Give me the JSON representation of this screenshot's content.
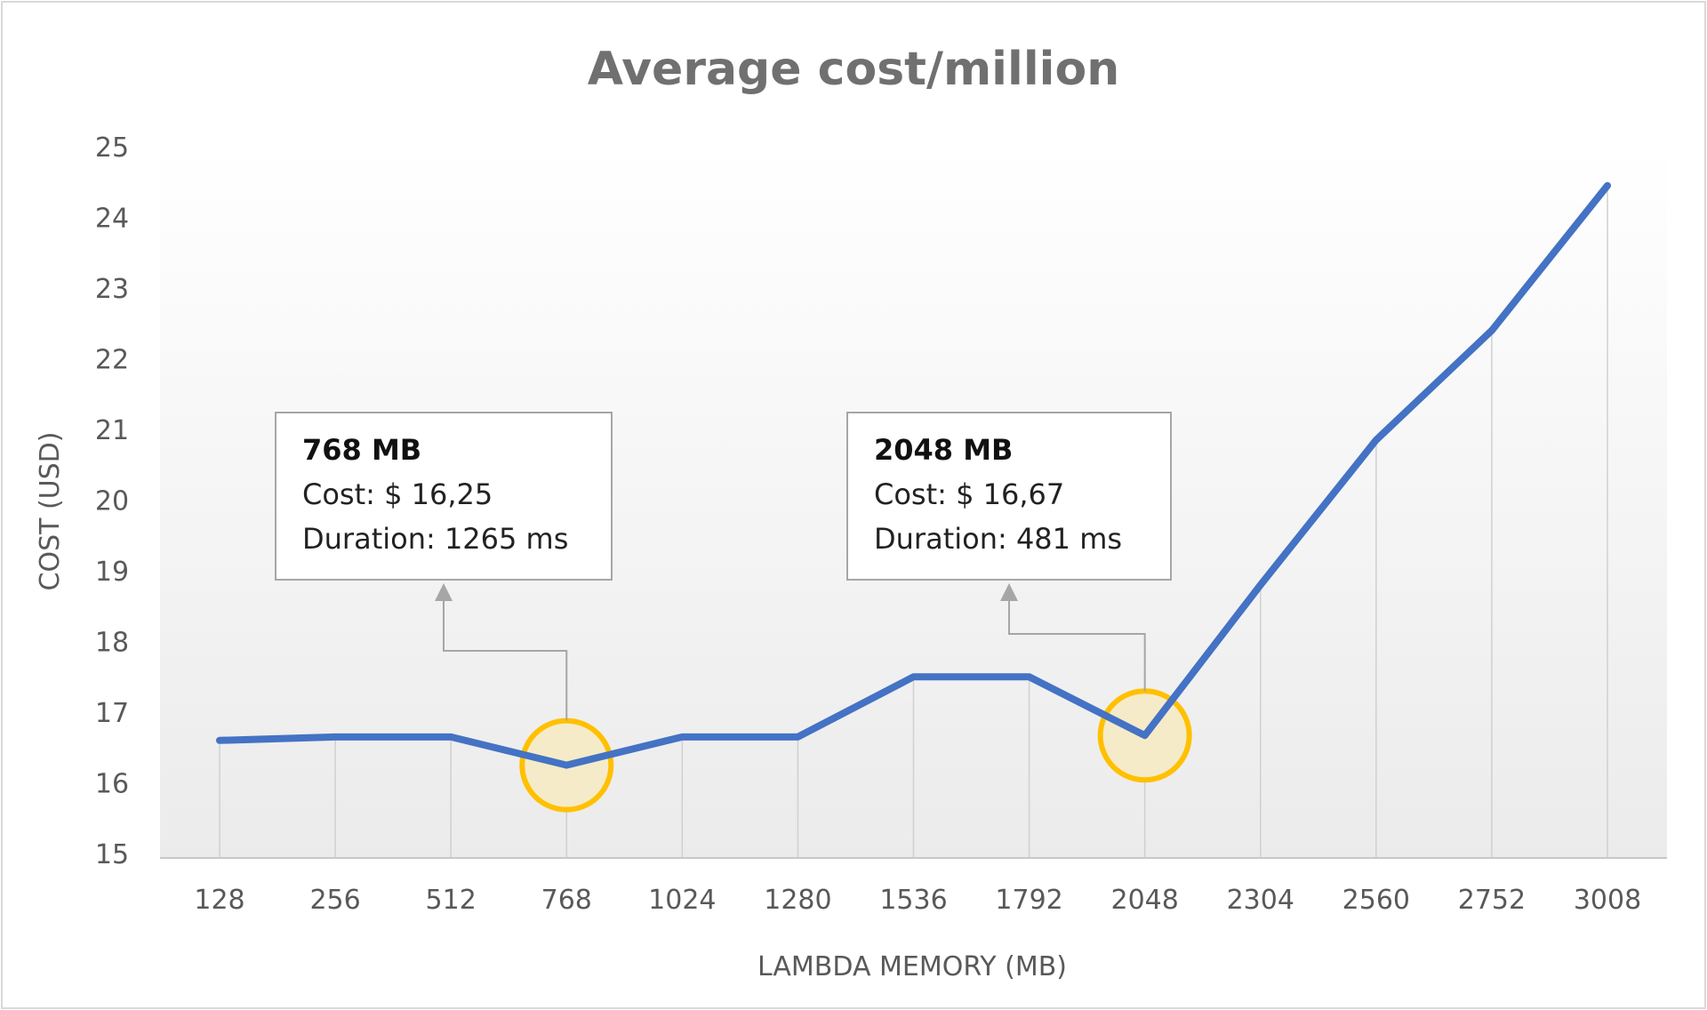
{
  "chart_data": {
    "type": "line",
    "title": "Average cost/million",
    "xlabel": "LAMBDA MEMORY (MB)",
    "ylabel": "COST (USD)",
    "categories": [
      "128",
      "256",
      "512",
      "768",
      "1024",
      "1280",
      "1536",
      "1792",
      "2048",
      "2304",
      "2560",
      "2752",
      "3008"
    ],
    "series": [
      {
        "values": [
          16.6,
          16.65,
          16.65,
          16.25,
          16.65,
          16.65,
          17.5,
          17.5,
          16.67,
          18.8,
          20.85,
          22.4,
          24.45
        ],
        "color": "#4472c4"
      }
    ],
    "ylim": [
      15,
      25
    ],
    "yticks": [
      15,
      16,
      17,
      18,
      19,
      20,
      21,
      22,
      23,
      24,
      25
    ],
    "drop_lines": true,
    "legend": "none",
    "annotations": [
      {
        "category_index": 3,
        "header": "768 MB",
        "cost_line": "Cost: $ 16,25",
        "duration_line": "Duration: 1265 ms",
        "highlight_color": "#ffc000"
      },
      {
        "category_index": 8,
        "header": "2048 MB",
        "cost_line": "Cost: $ 16,67",
        "duration_line": "Duration: 481 ms",
        "highlight_color": "#ffc000"
      }
    ]
  }
}
